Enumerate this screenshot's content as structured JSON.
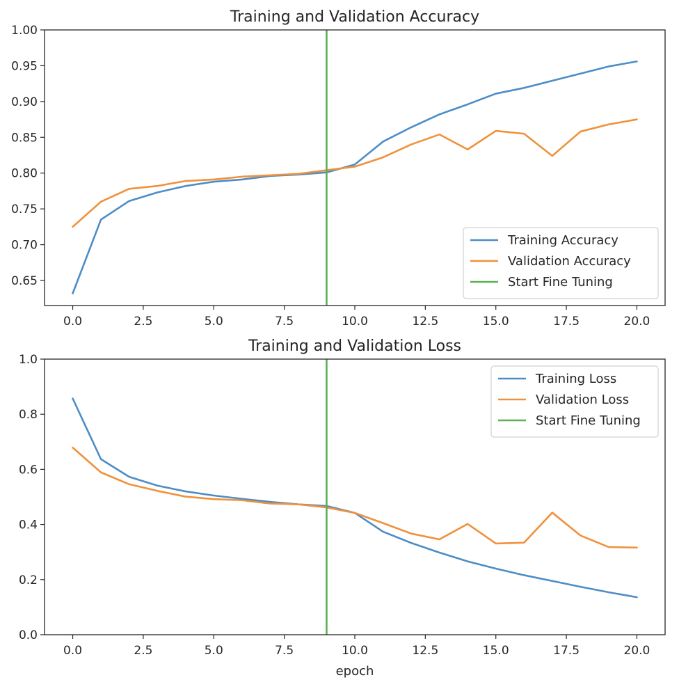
{
  "chart_data": [
    {
      "type": "line",
      "title": "Training and Validation Accuracy",
      "xlabel": "",
      "ylabel": "",
      "xlim": [
        -1,
        21
      ],
      "ylim": [
        0.615,
        1.0
      ],
      "xticks": [
        0,
        2.5,
        5,
        7.5,
        10,
        12.5,
        15,
        17.5,
        20
      ],
      "xtick_labels": [
        "0.0",
        "2.5",
        "5.0",
        "7.5",
        "10.0",
        "12.5",
        "15.0",
        "17.5",
        "20.0"
      ],
      "yticks": [
        0.65,
        0.7,
        0.75,
        0.8,
        0.85,
        0.9,
        0.95,
        1.0
      ],
      "ytick_labels": [
        "0.65",
        "0.70",
        "0.75",
        "0.80",
        "0.85",
        "0.90",
        "0.95",
        "1.00"
      ],
      "grid": false,
      "legend_position": "lower-right",
      "x": [
        0,
        1,
        2,
        3,
        4,
        5,
        6,
        7,
        8,
        9,
        10,
        11,
        12,
        13,
        14,
        15,
        16,
        17,
        18,
        19,
        20
      ],
      "series": [
        {
          "name": "Training Accuracy",
          "color": "#4c8dc6",
          "values": [
            0.632,
            0.735,
            0.761,
            0.773,
            0.782,
            0.788,
            0.791,
            0.796,
            0.798,
            0.801,
            0.812,
            0.844,
            0.864,
            0.882,
            0.896,
            0.911,
            0.919,
            0.929,
            0.939,
            0.949,
            0.956
          ]
        },
        {
          "name": "Validation Accuracy",
          "color": "#f0913b",
          "values": [
            0.725,
            0.76,
            0.778,
            0.782,
            0.789,
            0.791,
            0.795,
            0.797,
            0.799,
            0.804,
            0.809,
            0.822,
            0.84,
            0.854,
            0.833,
            0.859,
            0.855,
            0.824,
            0.858,
            0.868,
            0.875
          ]
        }
      ],
      "vline": {
        "name": "Start Fine Tuning",
        "x": 9,
        "color": "#5cb052"
      }
    },
    {
      "type": "line",
      "title": "Training and Validation Loss",
      "xlabel": "epoch",
      "ylabel": "",
      "xlim": [
        -1,
        21
      ],
      "ylim": [
        0.0,
        1.0
      ],
      "xticks": [
        0,
        2.5,
        5,
        7.5,
        10,
        12.5,
        15,
        17.5,
        20
      ],
      "xtick_labels": [
        "0.0",
        "2.5",
        "5.0",
        "7.5",
        "10.0",
        "12.5",
        "15.0",
        "17.5",
        "20.0"
      ],
      "yticks": [
        0.0,
        0.2,
        0.4,
        0.6,
        0.8,
        1.0
      ],
      "ytick_labels": [
        "0.0",
        "0.2",
        "0.4",
        "0.6",
        "0.8",
        "1.0"
      ],
      "grid": false,
      "legend_position": "upper-right",
      "x": [
        0,
        1,
        2,
        3,
        4,
        5,
        6,
        7,
        8,
        9,
        10,
        11,
        12,
        13,
        14,
        15,
        16,
        17,
        18,
        19,
        20
      ],
      "series": [
        {
          "name": "Training Loss",
          "color": "#4c8dc6",
          "values": [
            0.857,
            0.637,
            0.573,
            0.541,
            0.52,
            0.505,
            0.493,
            0.482,
            0.473,
            0.467,
            0.442,
            0.374,
            0.333,
            0.298,
            0.266,
            0.24,
            0.216,
            0.195,
            0.174,
            0.154,
            0.136
          ]
        },
        {
          "name": "Validation Loss",
          "color": "#f0913b",
          "values": [
            0.679,
            0.589,
            0.546,
            0.522,
            0.501,
            0.492,
            0.488,
            0.476,
            0.473,
            0.462,
            0.442,
            0.405,
            0.367,
            0.346,
            0.402,
            0.331,
            0.334,
            0.443,
            0.36,
            0.318,
            0.316
          ]
        }
      ],
      "vline": {
        "name": "Start Fine Tuning",
        "x": 9,
        "color": "#5cb052"
      }
    }
  ]
}
